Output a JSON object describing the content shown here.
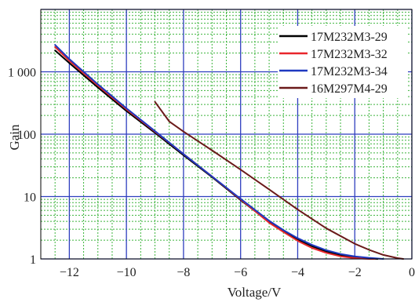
{
  "chart_data": {
    "type": "line",
    "title": "",
    "xlabel": "Voltage/V",
    "ylabel": "Gain",
    "xlim": [
      -13,
      0
    ],
    "ylim": [
      1,
      10000
    ],
    "yscale": "log",
    "grid": true,
    "legend_position": "top-right",
    "x_ticks": [
      -12,
      -10,
      -8,
      -6,
      -4,
      -2,
      0
    ],
    "x_tick_labels": [
      "−12",
      "−10",
      "−8",
      "−6",
      "−4",
      "−2",
      "0"
    ],
    "y_ticks": [
      1,
      10,
      100,
      1000
    ],
    "y_tick_labels": [
      "1",
      "10",
      "100",
      "1 000"
    ],
    "series": [
      {
        "name": "17M232M3-29",
        "color": "#000000",
        "x": [
          -12.5,
          -12,
          -11,
          -10,
          -9,
          -8,
          -7,
          -6,
          -5,
          -4.5,
          -4,
          -3.5,
          -3,
          -2.5,
          -2,
          -1.5,
          -1.2
        ],
        "y": [
          2200,
          1380,
          560,
          235,
          105,
          46,
          20.5,
          8.8,
          3.9,
          2.8,
          2.05,
          1.6,
          1.32,
          1.15,
          1.06,
          1.02,
          1.0
        ]
      },
      {
        "name": "17M232M3-32",
        "color": "#e8262b",
        "x": [
          -12.5,
          -12,
          -11,
          -10,
          -9,
          -8,
          -7,
          -6,
          -5,
          -4.5,
          -4,
          -3.5,
          -3,
          -2.5,
          -2,
          -1.5,
          -1.3
        ],
        "y": [
          2500,
          1500,
          600,
          250,
          110,
          48,
          21,
          9.0,
          3.8,
          2.7,
          1.95,
          1.5,
          1.25,
          1.1,
          1.03,
          1.0,
          1.0
        ]
      },
      {
        "name": "17M232M3-34",
        "color": "#1f39c0",
        "x": [
          -12.5,
          -12,
          -11,
          -10,
          -9,
          -8,
          -7,
          -6,
          -5,
          -4.5,
          -4,
          -3.5,
          -3,
          -2.5,
          -2,
          -1.5,
          -1.0
        ],
        "y": [
          2700,
          1600,
          630,
          260,
          112,
          48,
          21,
          9.2,
          4.1,
          2.9,
          2.15,
          1.68,
          1.38,
          1.2,
          1.1,
          1.04,
          1.0
        ]
      },
      {
        "name": "16M297M4-29",
        "color": "#6b1a1a",
        "x": [
          -9,
          -8.5,
          -8,
          -7,
          -6,
          -5,
          -4,
          -3,
          -2,
          -1.5,
          -1,
          -0.5,
          -0.3
        ],
        "y": [
          330,
          160,
          110,
          55,
          27,
          13,
          6.2,
          3.1,
          1.75,
          1.4,
          1.16,
          1.03,
          1.0
        ]
      }
    ]
  }
}
